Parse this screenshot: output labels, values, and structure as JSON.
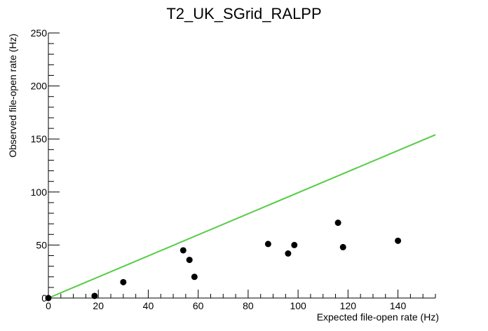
{
  "chart_data": {
    "type": "scatter",
    "title": "T2_UK_SGrid_RALPP",
    "xlabel": "Expected file-open rate (Hz)",
    "ylabel": "Observed file-open rate (Hz)",
    "xlim": [
      0,
      155
    ],
    "ylim": [
      0,
      250
    ],
    "x_ticks": [
      0,
      20,
      40,
      60,
      80,
      100,
      120,
      140
    ],
    "y_ticks": [
      0,
      50,
      100,
      150,
      200,
      250
    ],
    "grid": false,
    "points": [
      {
        "x": 0,
        "y": 0
      },
      {
        "x": 18.5,
        "y": 2
      },
      {
        "x": 30,
        "y": 15
      },
      {
        "x": 54,
        "y": 45
      },
      {
        "x": 56.5,
        "y": 36
      },
      {
        "x": 58.5,
        "y": 20
      },
      {
        "x": 88,
        "y": 51
      },
      {
        "x": 96,
        "y": 42
      },
      {
        "x": 98.5,
        "y": 50
      },
      {
        "x": 116,
        "y": 71
      },
      {
        "x": 118,
        "y": 48
      },
      {
        "x": 140,
        "y": 54
      }
    ],
    "reference_line": {
      "x": [
        0,
        155
      ],
      "y": [
        0,
        154
      ],
      "color": "#55cc44"
    },
    "marker_color": "#000000"
  }
}
